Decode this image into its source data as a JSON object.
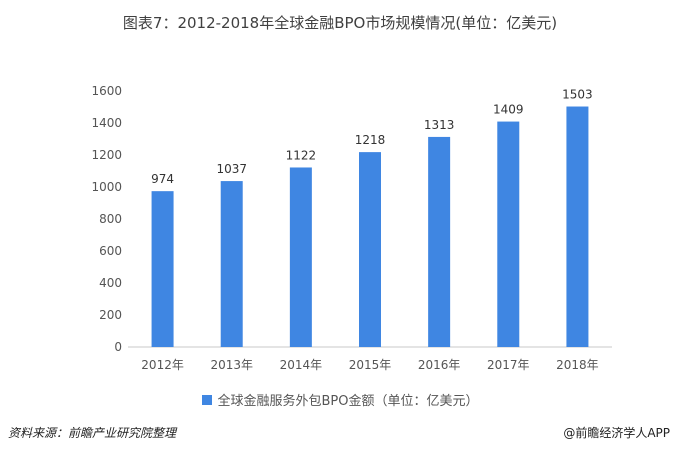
{
  "colors": {
    "bar": "#3F86E2",
    "axis": "#c8c8c8",
    "grid": "#e6e6e6"
  },
  "footer": {
    "source": "资料来源：前瞻产业研究院整理",
    "brand": "@前瞻经济学人APP"
  },
  "chart_data": {
    "type": "bar",
    "title": "图表7：2012-2018年全球金融BPO市场规模情况(单位：亿美元)",
    "xlabel": "",
    "ylabel": "",
    "categories": [
      "2012年",
      "2013年",
      "2014年",
      "2015年",
      "2016年",
      "2017年",
      "2018年"
    ],
    "series": [
      {
        "name": "全球金融服务外包BPO金额（单位：亿美元）",
        "values": [
          974,
          1037,
          1122,
          1218,
          1313,
          1409,
          1503
        ]
      }
    ],
    "ylim": [
      0,
      1600
    ],
    "yticks": [
      "0",
      "200",
      "400",
      "600",
      "800",
      "1000",
      "1200",
      "1400",
      "1600"
    ],
    "grid": false,
    "legend": "bottom",
    "data_labels": true
  }
}
